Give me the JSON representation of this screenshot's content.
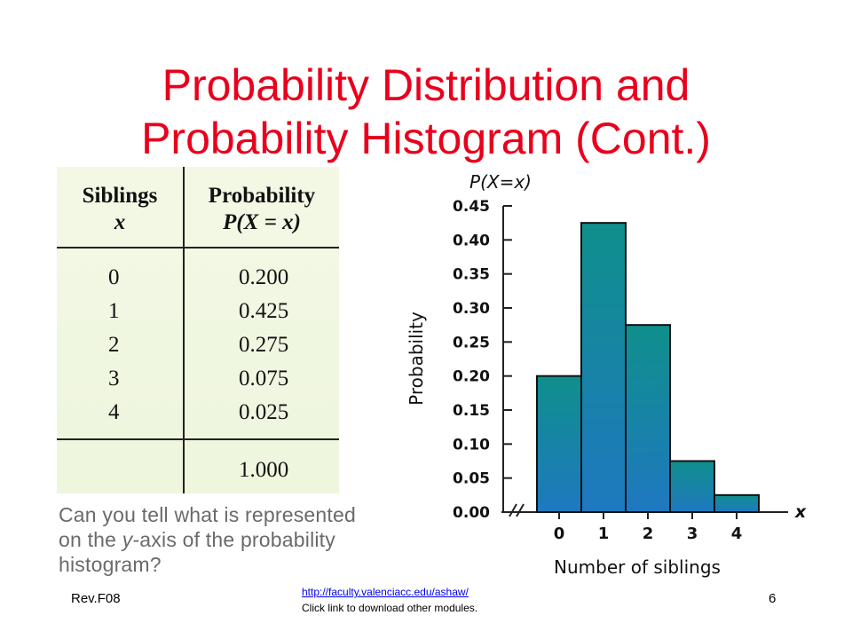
{
  "slide": {
    "title_line1": "Probability Distribution and",
    "title_line2": "Probability Histogram (Cont.)",
    "question": "Can you tell what is represented on the y-axis of the probability histogram?",
    "question_parts": [
      "Can you tell what is represented",
      "on the ",
      "y",
      "-axis of the probability",
      "histogram?"
    ],
    "footer_left": "Rev.F08",
    "footer_link": "http://faculty.valenciacc.edu/ashaw/",
    "footer_note": "Click link to download other modules.",
    "page_number": "6",
    "title_color": "#e8001c"
  },
  "table": {
    "header_x_line1": "Siblings",
    "header_x_line2": "x",
    "header_p_line1": "Probability",
    "header_p_line2": "P(X = x)",
    "rows": [
      {
        "x": "0",
        "p": "0.200"
      },
      {
        "x": "1",
        "p": "0.425"
      },
      {
        "x": "2",
        "p": "0.275"
      },
      {
        "x": "3",
        "p": "0.075"
      },
      {
        "x": "4",
        "p": "0.025"
      }
    ],
    "total": "1.000"
  },
  "chart_data": {
    "type": "bar",
    "title": "P(X=x)",
    "xlabel": "Number of siblings",
    "ylabel": "Probability",
    "x_axis_symbol": "x",
    "categories": [
      "0",
      "1",
      "2",
      "3",
      "4"
    ],
    "values": [
      0.2,
      0.425,
      0.275,
      0.075,
      0.025
    ],
    "ylim": [
      0,
      0.45
    ],
    "yticks": [
      "0.00",
      "0.05",
      "0.10",
      "0.15",
      "0.20",
      "0.25",
      "0.30",
      "0.35",
      "0.40",
      "0.45"
    ],
    "grid": false,
    "bar_gradient_top": "#0f8f8c",
    "bar_gradient_bottom": "#1f78c0"
  }
}
